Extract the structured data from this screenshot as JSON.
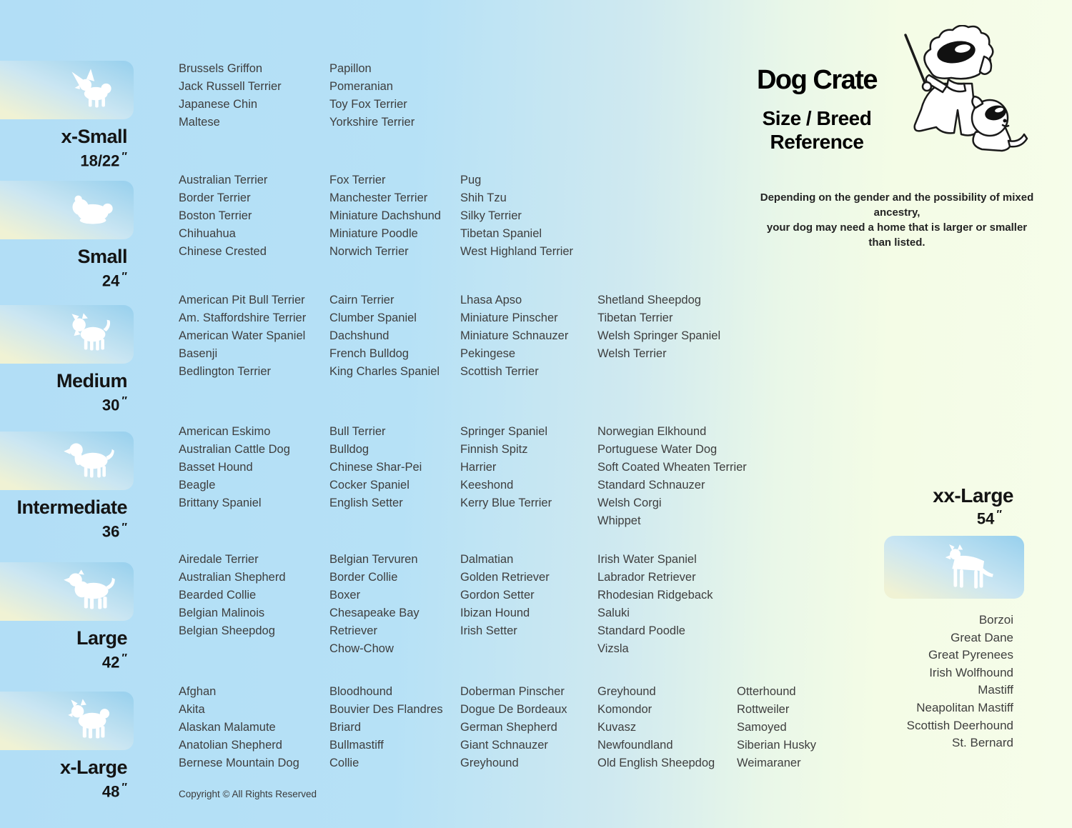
{
  "meta": {
    "inch_mark": "″"
  },
  "header": {
    "title": "Dog Crate",
    "subtitle_line1": "Size / Breed",
    "subtitle_line2": "Reference",
    "disclaimer_line1": "Depending on the gender and the possibility of mixed ancestry,",
    "disclaimer_line2": "your dog may need  a home that is larger or smaller than listed.",
    "mascot_icon": "sheepdog-teacher-with-puppy-cartoon"
  },
  "copyright": "Copyright © All Rights Reserved",
  "sizes": [
    {
      "label": "x-Small",
      "dimension": "18/22",
      "icon": "papillon-dog-icon",
      "columns": [
        [
          "Brussels Griffon",
          "Jack Russell Terrier",
          "Japanese Chin",
          "Maltese"
        ],
        [
          "Papillon",
          "Pomeranian",
          "Toy Fox Terrier",
          "Yorkshire Terrier"
        ]
      ]
    },
    {
      "label": "Small",
      "dimension": "24",
      "icon": "shih-tzu-dog-icon",
      "columns": [
        [
          "Australian Terrier",
          "Border Terrier",
          "Boston Terrier",
          "Chihuahua",
          "Chinese Crested"
        ],
        [
          "Fox Terrier",
          "Manchester Terrier",
          "Miniature Dachshund",
          "Miniature Poodle",
          "Norwich Terrier"
        ],
        [
          "Pug",
          "Shih Tzu",
          "Silky Terrier",
          "Tibetan Spaniel",
          "West Highland Terrier"
        ]
      ]
    },
    {
      "label": "Medium",
      "dimension": "30",
      "icon": "west-highland-terrier-dog-icon",
      "columns": [
        [
          "American Pit Bull Terrier",
          "Am. Staffordshire Terrier",
          "American Water Spaniel",
          "Basenji",
          "Bedlington Terrier"
        ],
        [
          "Cairn Terrier",
          "Clumber Spaniel",
          "Dachshund",
          "French Bulldog",
          "King Charles Spaniel"
        ],
        [
          "Lhasa Apso",
          "Miniature Pinscher",
          "Miniature Schnauzer",
          "Pekingese",
          "Scottish Terrier"
        ],
        [
          "Shetland Sheepdog",
          "Tibetan Terrier",
          "Welsh Springer Spaniel",
          "Welsh Terrier"
        ]
      ]
    },
    {
      "label": "Intermediate",
      "dimension": "36",
      "icon": "spaniel-dog-icon",
      "columns": [
        [
          "American Eskimo",
          "Australian Cattle Dog",
          "Basset Hound",
          "Beagle",
          "Brittany Spaniel"
        ],
        [
          "Bull Terrier",
          "Bulldog",
          "Chinese Shar-Pei",
          "Cocker Spaniel",
          "English Setter"
        ],
        [
          "Springer Spaniel",
          "Finnish Spitz",
          "Harrier",
          "Keeshond",
          "Kerry Blue Terrier"
        ],
        [
          "Norwegian Elkhound",
          "Portuguese Water Dog",
          "Soft Coated Wheaten Terrier",
          "Standard Schnauzer",
          "Welsh Corgi",
          "Whippet"
        ]
      ]
    },
    {
      "label": "Large",
      "dimension": "42",
      "icon": "australian-shepherd-dog-icon",
      "columns": [
        [
          "Airedale Terrier",
          "Australian Shepherd",
          "Bearded Collie",
          "Belgian Malinois",
          "Belgian Sheepdog"
        ],
        [
          "Belgian Tervuren",
          "Border Collie",
          "Boxer",
          "Chesapeake Bay Retriever",
          "Chow-Chow"
        ],
        [
          "Dalmatian",
          "Golden Retriever",
          "Gordon Setter",
          "Ibizan Hound",
          "Irish Setter"
        ],
        [
          "Irish Water Spaniel",
          "Labrador Retriever",
          "Rhodesian Ridgeback",
          "Saluki",
          "Standard Poodle",
          "Vizsla"
        ]
      ]
    },
    {
      "label": "x-Large",
      "dimension": "48",
      "icon": "akita-dog-icon",
      "columns": [
        [
          "Afghan",
          "Akita",
          "Alaskan Malamute",
          "Anatolian Shepherd",
          "Bernese Mountain Dog"
        ],
        [
          "Bloodhound",
          "Bouvier Des Flandres",
          "Briard",
          "Bullmastiff",
          "Collie"
        ],
        [
          "Doberman Pinscher",
          "Dogue De Bordeaux",
          "German Shepherd",
          "Giant Schnauzer",
          "Greyhound"
        ],
        [
          "Greyhound",
          "Komondor",
          "Kuvasz",
          "Newfoundland",
          "Old English Sheepdog"
        ],
        [
          "Otterhound",
          "Rottweiler",
          "Samoyed",
          "Siberian Husky",
          "Weimaraner"
        ]
      ]
    }
  ],
  "xxlarge": {
    "label": "xx-Large",
    "dimension": "54",
    "icon": "great-dane-dog-icon",
    "breeds": [
      "Borzoi",
      "Great Dane",
      "Great Pyrenees",
      "Irish Wolfhound",
      "Mastiff",
      "Neapolitan Mastiff",
      "Scottish Deerhound",
      "St. Bernard"
    ]
  }
}
